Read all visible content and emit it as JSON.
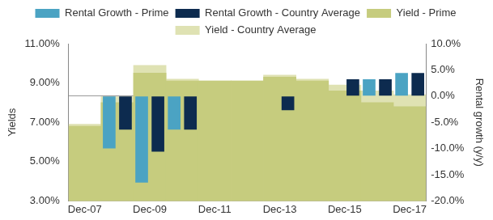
{
  "chart_data": {
    "type": "bar",
    "categories": [
      "Dec-07",
      null,
      "Dec-09",
      null,
      "Dec-11",
      null,
      "Dec-13",
      null,
      "Dec-15",
      null,
      "Dec-17"
    ],
    "series": [
      {
        "name": "Yield - Country Average",
        "color": "#dfe2b3",
        "values": [
          6.9,
          8.3,
          9.9,
          9.2,
          9.1,
          9.1,
          9.4,
          9.2,
          8.9,
          8.6,
          8.4
        ]
      },
      {
        "name": "Rental Growth - Prime",
        "color": "#4ba3c3",
        "axis": "y2",
        "values": [
          0,
          -10.0,
          -16.5,
          -6.4,
          0,
          0,
          0,
          0,
          0,
          3.2,
          4.4
        ]
      },
      {
        "name": "Yield - Prime",
        "color": "#c6cc7e",
        "values": [
          6.8,
          8.0,
          9.5,
          9.1,
          9.1,
          9.1,
          9.3,
          9.1,
          8.6,
          8.0,
          7.8
        ]
      },
      {
        "name": "Rental Growth - Country Average",
        "color": "#0d2b4f",
        "axis": "y2",
        "values": [
          0,
          -6.4,
          -10.6,
          -6.4,
          0,
          0,
          -2.7,
          0,
          3.2,
          3.2,
          4.4
        ]
      }
    ],
    "ylabel": "Yields",
    "y2label": "Rental growth (y/y)",
    "ylim": [
      3,
      11
    ],
    "yticks": [
      {
        "value": 3,
        "label": "3.00%"
      },
      {
        "value": 5,
        "label": "5.00%"
      },
      {
        "value": 7,
        "label": "7.00%"
      },
      {
        "value": 9,
        "label": "9.00%"
      },
      {
        "value": 11,
        "label": "11.00%"
      }
    ],
    "y2lim": [
      -20,
      10
    ],
    "y2ticks": [
      {
        "value": -20,
        "label": "-20.0%"
      },
      {
        "value": -15,
        "label": "-15.0%"
      },
      {
        "value": -10,
        "label": "-10.0%"
      },
      {
        "value": -5,
        "label": "-5.0%"
      },
      {
        "value": 0,
        "label": "0.0%"
      },
      {
        "value": 5,
        "label": "5.0%"
      },
      {
        "value": 10,
        "label": "10.0%"
      }
    ],
    "legend": "top",
    "grid": false
  }
}
